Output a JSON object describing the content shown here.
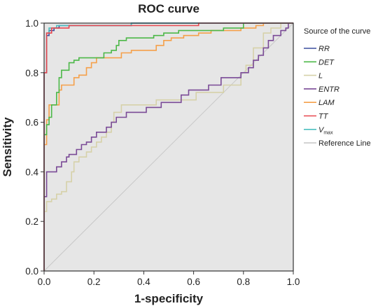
{
  "chart_data": {
    "type": "line",
    "title": "ROC curve",
    "xlabel": "1-specificity",
    "ylabel": "Sensitivity",
    "xlim": [
      0,
      1
    ],
    "ylim": [
      0,
      1
    ],
    "xticks": [
      "0.0",
      "0.2",
      "0.4",
      "0.6",
      "0.8",
      "1.0"
    ],
    "yticks": [
      "0.0",
      "0.2",
      "0.4",
      "0.6",
      "0.8",
      "1.0"
    ],
    "grid": false,
    "background": "#e6e6e6",
    "legend": {
      "title": "Source of the curve",
      "position": "right",
      "entries": [
        {
          "label": "RR",
          "italic": true,
          "color": "#3c4f9e"
        },
        {
          "label": "DET",
          "italic": true,
          "color": "#4cb848"
        },
        {
          "label": "L",
          "italic": true,
          "color": "#d6d1a9"
        },
        {
          "label": "ENTR",
          "italic": true,
          "color": "#7a4a96"
        },
        {
          "label": "LAM",
          "italic": true,
          "color": "#f5a04a"
        },
        {
          "label": "TT",
          "italic": true,
          "color": "#e8474f"
        },
        {
          "label": "V",
          "sub": "max",
          "italic": true,
          "color": "#4bbfbf"
        },
        {
          "label": "Reference Line",
          "italic": false,
          "color": "#c8c8c8"
        }
      ]
    },
    "series": [
      {
        "name": "RR",
        "color": "#3c4f9e",
        "points": [
          [
            0.0,
            0.0
          ],
          [
            0.0,
            0.8
          ],
          [
            0.01,
            0.8
          ],
          [
            0.01,
            0.95
          ],
          [
            0.02,
            0.95
          ],
          [
            0.02,
            0.97
          ],
          [
            0.04,
            0.97
          ],
          [
            0.04,
            0.98
          ],
          [
            0.06,
            0.98
          ],
          [
            0.06,
            0.99
          ],
          [
            0.35,
            0.99
          ],
          [
            0.35,
            1.0
          ],
          [
            1.0,
            1.0
          ]
        ]
      },
      {
        "name": "DET",
        "color": "#4cb848",
        "points": [
          [
            0.0,
            0.0
          ],
          [
            0.0,
            0.55
          ],
          [
            0.01,
            0.55
          ],
          [
            0.01,
            0.59
          ],
          [
            0.02,
            0.59
          ],
          [
            0.02,
            0.62
          ],
          [
            0.03,
            0.62
          ],
          [
            0.03,
            0.67
          ],
          [
            0.05,
            0.67
          ],
          [
            0.05,
            0.72
          ],
          [
            0.06,
            0.72
          ],
          [
            0.06,
            0.78
          ],
          [
            0.07,
            0.78
          ],
          [
            0.07,
            0.81
          ],
          [
            0.1,
            0.81
          ],
          [
            0.1,
            0.84
          ],
          [
            0.12,
            0.84
          ],
          [
            0.12,
            0.85
          ],
          [
            0.14,
            0.85
          ],
          [
            0.14,
            0.86
          ],
          [
            0.24,
            0.86
          ],
          [
            0.24,
            0.88
          ],
          [
            0.27,
            0.88
          ],
          [
            0.27,
            0.89
          ],
          [
            0.29,
            0.89
          ],
          [
            0.29,
            0.91
          ],
          [
            0.3,
            0.91
          ],
          [
            0.3,
            0.93
          ],
          [
            0.33,
            0.93
          ],
          [
            0.33,
            0.94
          ],
          [
            0.44,
            0.94
          ],
          [
            0.44,
            0.95
          ],
          [
            0.48,
            0.95
          ],
          [
            0.48,
            0.96
          ],
          [
            0.54,
            0.96
          ],
          [
            0.54,
            0.97
          ],
          [
            0.72,
            0.97
          ],
          [
            0.72,
            0.98
          ],
          [
            0.8,
            0.98
          ],
          [
            0.8,
            1.0
          ],
          [
            1.0,
            1.0
          ]
        ]
      },
      {
        "name": "L",
        "color": "#d6d1a9",
        "points": [
          [
            0.0,
            0.0
          ],
          [
            0.0,
            0.24
          ],
          [
            0.01,
            0.24
          ],
          [
            0.01,
            0.28
          ],
          [
            0.03,
            0.28
          ],
          [
            0.03,
            0.29
          ],
          [
            0.05,
            0.29
          ],
          [
            0.05,
            0.31
          ],
          [
            0.07,
            0.31
          ],
          [
            0.07,
            0.32
          ],
          [
            0.09,
            0.32
          ],
          [
            0.09,
            0.36
          ],
          [
            0.11,
            0.36
          ],
          [
            0.11,
            0.4
          ],
          [
            0.12,
            0.4
          ],
          [
            0.12,
            0.44
          ],
          [
            0.14,
            0.44
          ],
          [
            0.14,
            0.46
          ],
          [
            0.17,
            0.46
          ],
          [
            0.17,
            0.48
          ],
          [
            0.19,
            0.48
          ],
          [
            0.19,
            0.5
          ],
          [
            0.21,
            0.5
          ],
          [
            0.21,
            0.52
          ],
          [
            0.23,
            0.52
          ],
          [
            0.23,
            0.54
          ],
          [
            0.25,
            0.54
          ],
          [
            0.25,
            0.56
          ],
          [
            0.27,
            0.56
          ],
          [
            0.27,
            0.6
          ],
          [
            0.28,
            0.6
          ],
          [
            0.28,
            0.64
          ],
          [
            0.31,
            0.64
          ],
          [
            0.31,
            0.67
          ],
          [
            0.45,
            0.67
          ],
          [
            0.45,
            0.69
          ],
          [
            0.61,
            0.69
          ],
          [
            0.61,
            0.72
          ],
          [
            0.72,
            0.72
          ],
          [
            0.72,
            0.75
          ],
          [
            0.79,
            0.75
          ],
          [
            0.79,
            0.8
          ],
          [
            0.81,
            0.8
          ],
          [
            0.81,
            0.83
          ],
          [
            0.84,
            0.83
          ],
          [
            0.84,
            0.9
          ],
          [
            0.88,
            0.9
          ],
          [
            0.88,
            0.96
          ],
          [
            0.91,
            0.96
          ],
          [
            0.91,
            0.98
          ],
          [
            0.95,
            0.98
          ],
          [
            0.95,
            1.0
          ],
          [
            1.0,
            1.0
          ]
        ]
      },
      {
        "name": "ENTR",
        "color": "#7a4a96",
        "points": [
          [
            0.0,
            0.0
          ],
          [
            0.0,
            0.3
          ],
          [
            0.01,
            0.3
          ],
          [
            0.01,
            0.4
          ],
          [
            0.05,
            0.4
          ],
          [
            0.05,
            0.42
          ],
          [
            0.07,
            0.42
          ],
          [
            0.07,
            0.44
          ],
          [
            0.09,
            0.44
          ],
          [
            0.09,
            0.46
          ],
          [
            0.1,
            0.46
          ],
          [
            0.1,
            0.47
          ],
          [
            0.13,
            0.47
          ],
          [
            0.13,
            0.49
          ],
          [
            0.15,
            0.49
          ],
          [
            0.15,
            0.51
          ],
          [
            0.17,
            0.51
          ],
          [
            0.17,
            0.52
          ],
          [
            0.19,
            0.52
          ],
          [
            0.19,
            0.54
          ],
          [
            0.21,
            0.54
          ],
          [
            0.21,
            0.56
          ],
          [
            0.25,
            0.56
          ],
          [
            0.25,
            0.58
          ],
          [
            0.27,
            0.58
          ],
          [
            0.27,
            0.6
          ],
          [
            0.29,
            0.6
          ],
          [
            0.29,
            0.62
          ],
          [
            0.33,
            0.62
          ],
          [
            0.33,
            0.64
          ],
          [
            0.41,
            0.64
          ],
          [
            0.41,
            0.66
          ],
          [
            0.47,
            0.66
          ],
          [
            0.47,
            0.68
          ],
          [
            0.55,
            0.68
          ],
          [
            0.55,
            0.71
          ],
          [
            0.58,
            0.71
          ],
          [
            0.58,
            0.73
          ],
          [
            0.66,
            0.73
          ],
          [
            0.66,
            0.75
          ],
          [
            0.71,
            0.75
          ],
          [
            0.71,
            0.78
          ],
          [
            0.79,
            0.78
          ],
          [
            0.79,
            0.8
          ],
          [
            0.82,
            0.8
          ],
          [
            0.82,
            0.82
          ],
          [
            0.84,
            0.82
          ],
          [
            0.84,
            0.85
          ],
          [
            0.86,
            0.85
          ],
          [
            0.86,
            0.87
          ],
          [
            0.88,
            0.87
          ],
          [
            0.88,
            0.9
          ],
          [
            0.9,
            0.9
          ],
          [
            0.9,
            0.93
          ],
          [
            0.92,
            0.93
          ],
          [
            0.92,
            0.95
          ],
          [
            0.95,
            0.95
          ],
          [
            0.95,
            0.97
          ],
          [
            0.97,
            0.97
          ],
          [
            0.97,
            0.98
          ],
          [
            0.98,
            0.98
          ],
          [
            0.98,
            1.0
          ],
          [
            1.0,
            1.0
          ]
        ]
      },
      {
        "name": "LAM",
        "color": "#f5a04a",
        "points": [
          [
            0.0,
            0.0
          ],
          [
            0.0,
            0.51
          ],
          [
            0.01,
            0.51
          ],
          [
            0.01,
            0.61
          ],
          [
            0.02,
            0.61
          ],
          [
            0.02,
            0.67
          ],
          [
            0.06,
            0.67
          ],
          [
            0.06,
            0.73
          ],
          [
            0.07,
            0.73
          ],
          [
            0.07,
            0.75
          ],
          [
            0.12,
            0.75
          ],
          [
            0.12,
            0.78
          ],
          [
            0.14,
            0.78
          ],
          [
            0.14,
            0.79
          ],
          [
            0.17,
            0.79
          ],
          [
            0.17,
            0.82
          ],
          [
            0.19,
            0.82
          ],
          [
            0.19,
            0.84
          ],
          [
            0.21,
            0.84
          ],
          [
            0.21,
            0.86
          ],
          [
            0.31,
            0.86
          ],
          [
            0.31,
            0.88
          ],
          [
            0.35,
            0.88
          ],
          [
            0.35,
            0.89
          ],
          [
            0.45,
            0.89
          ],
          [
            0.45,
            0.91
          ],
          [
            0.48,
            0.91
          ],
          [
            0.48,
            0.93
          ],
          [
            0.51,
            0.93
          ],
          [
            0.51,
            0.94
          ],
          [
            0.56,
            0.94
          ],
          [
            0.56,
            0.95
          ],
          [
            0.62,
            0.95
          ],
          [
            0.62,
            0.96
          ],
          [
            0.67,
            0.96
          ],
          [
            0.67,
            0.97
          ],
          [
            0.79,
            0.97
          ],
          [
            0.79,
            0.98
          ],
          [
            0.85,
            0.98
          ],
          [
            0.85,
            0.99
          ],
          [
            0.88,
            0.99
          ],
          [
            0.88,
            1.0
          ],
          [
            1.0,
            1.0
          ]
        ]
      },
      {
        "name": "TT",
        "color": "#e8474f",
        "points": [
          [
            0.0,
            0.0
          ],
          [
            0.0,
            0.8
          ],
          [
            0.01,
            0.8
          ],
          [
            0.01,
            0.96
          ],
          [
            0.03,
            0.96
          ],
          [
            0.03,
            0.98
          ],
          [
            0.1,
            0.98
          ],
          [
            0.1,
            0.99
          ],
          [
            0.62,
            0.99
          ],
          [
            0.62,
            1.0
          ],
          [
            1.0,
            1.0
          ]
        ]
      },
      {
        "name": "Vmax",
        "color": "#4bbfbf",
        "points": [
          [
            0.0,
            0.0
          ],
          [
            0.0,
            0.8
          ],
          [
            0.01,
            0.8
          ],
          [
            0.01,
            0.96
          ],
          [
            0.02,
            0.96
          ],
          [
            0.02,
            0.98
          ],
          [
            0.05,
            0.98
          ],
          [
            0.05,
            0.99
          ],
          [
            0.35,
            0.99
          ],
          [
            0.35,
            1.0
          ],
          [
            1.0,
            1.0
          ]
        ]
      },
      {
        "name": "Reference Line",
        "color": "#c8c8c8",
        "points": [
          [
            0.0,
            0.0
          ],
          [
            1.0,
            1.0
          ]
        ]
      }
    ]
  }
}
